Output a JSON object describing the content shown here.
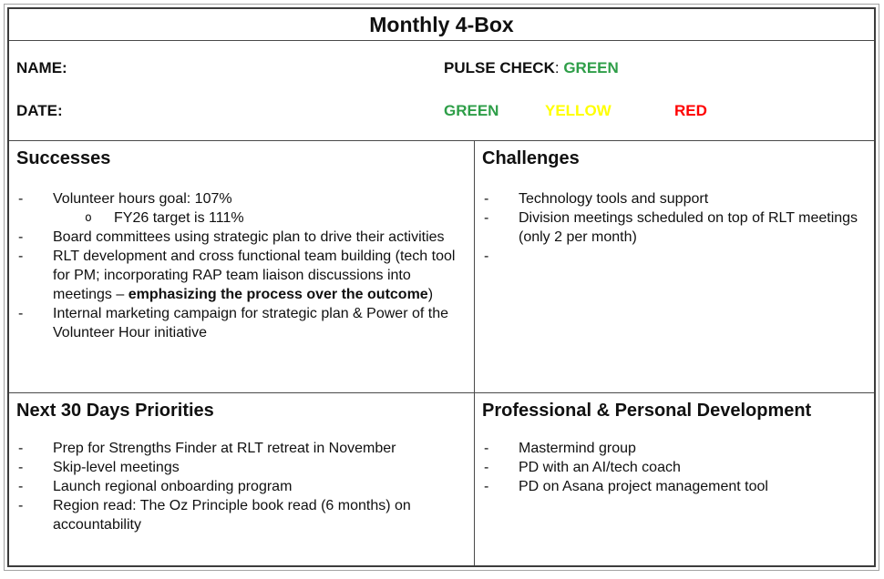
{
  "title": "Monthly 4-Box",
  "colors": {
    "green": "#2E9E48",
    "yellow": "#FFFF00",
    "red": "#FF0000"
  },
  "bullets": {
    "dash": "-",
    "circle": "o"
  },
  "header": {
    "name_label": "NAME:",
    "date_label": "DATE:",
    "pulse_label": "PULSE CHECK",
    "pulse_colon": ": ",
    "pulse_value": "GREEN",
    "legend_green": "GREEN",
    "legend_yellow": "YELLOW",
    "legend_red": "RED"
  },
  "quadrants": {
    "successes": {
      "heading": "Successes",
      "items": {
        "0": {
          "text": "Volunteer hours goal: 107%"
        },
        "1": {
          "text": "FY26 target is 111%"
        },
        "2": {
          "text": "Board committees using strategic plan to drive their activities"
        },
        "3": {
          "pre": "RLT development and cross functional team building (tech tool for PM; incorporating RAP team liaison discussions into meetings – ",
          "bold": "emphasizing the process over the outcome",
          "post": ")"
        },
        "4": {
          "text": "Internal marketing campaign for strategic plan & Power of the Volunteer Hour initiative"
        }
      }
    },
    "challenges": {
      "heading": "Challenges",
      "items": {
        "0": {
          "text": "Technology tools and support"
        },
        "1": {
          "text": "Division meetings scheduled on top of RLT meetings (only 2 per month)"
        },
        "2": {
          "text": ""
        }
      }
    },
    "priorities": {
      "heading": "Next 30 Days Priorities",
      "items": {
        "0": {
          "text": "Prep for Strengths Finder at RLT retreat in November"
        },
        "1": {
          "text": "Skip-level meetings"
        },
        "2": {
          "text": "Launch regional onboarding program"
        },
        "3": {
          "text": "Region read: The Oz Principle book read (6 months) on accountability"
        }
      }
    },
    "development": {
      "heading": "Professional & Personal Development",
      "items": {
        "0": {
          "text": "Mastermind group"
        },
        "1": {
          "text": "PD with an AI/tech coach"
        },
        "2": {
          "text": "PD on Asana project management tool"
        }
      }
    }
  }
}
